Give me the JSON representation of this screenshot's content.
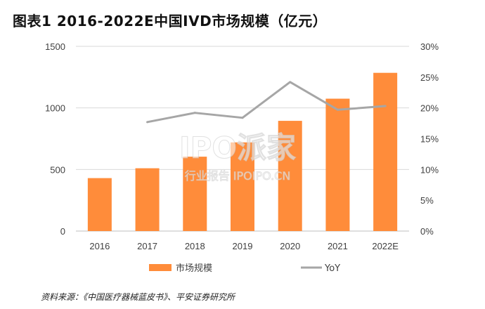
{
  "title": "图表1 2016-2022E中国IVD市场规模（亿元）",
  "source": "资料来源：《中国医疗器械蓝皮书》、平安证券研究所",
  "watermark": {
    "main": "IPO派家",
    "sub": "行业报告 IPOIPO.CN"
  },
  "colors": {
    "bar": "#FF8C3A",
    "line": "#A6A6A6",
    "grid": "#D9D9D9",
    "text": "#404040"
  },
  "chart_data": {
    "type": "bar",
    "categories": [
      "2016",
      "2017",
      "2018",
      "2019",
      "2020",
      "2021",
      "2022E"
    ],
    "series": [
      {
        "name": "市场规模",
        "type": "bar",
        "axis": "left",
        "values": [
          430,
          510,
          604,
          720,
          895,
          1075,
          1285
        ]
      },
      {
        "name": "YoY",
        "type": "line",
        "axis": "right",
        "values": [
          null,
          0.177,
          0.192,
          0.184,
          0.242,
          0.197,
          0.203
        ]
      }
    ],
    "y_left": {
      "min": 0,
      "max": 1500,
      "ticks": [
        "0",
        "500",
        "1000",
        "1500"
      ],
      "tick_values": [
        0,
        500,
        1000,
        1500
      ]
    },
    "y_right": {
      "min": 0,
      "max": 0.3,
      "ticks": [
        "0%",
        "5%",
        "10%",
        "15%",
        "20%",
        "25%",
        "30%"
      ],
      "tick_values": [
        0,
        0.05,
        0.1,
        0.15,
        0.2,
        0.25,
        0.3
      ]
    },
    "grid": true,
    "legend": {
      "position": "bottom",
      "items": [
        "市场规模",
        "YoY"
      ]
    }
  }
}
